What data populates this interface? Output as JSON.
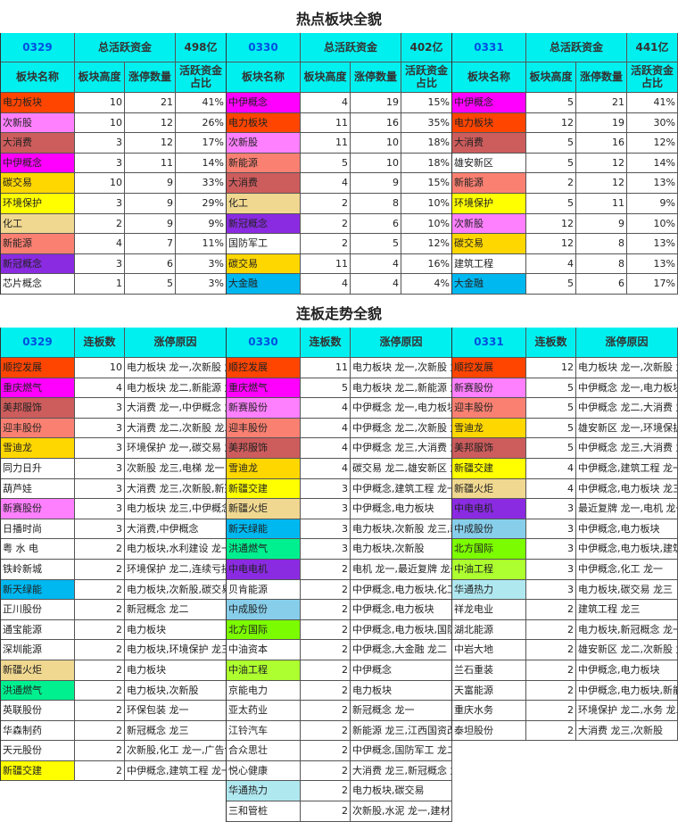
{
  "titles": {
    "hot": "热点板块全貌",
    "chain": "连板走势全貌"
  },
  "colors": {
    "电力": "#ff4500",
    "次新": "#ff80ff",
    "消费": "#cd5c5c",
    "中伊": "#ff00ff",
    "碳": "#ffd700",
    "环保": "#ffff00",
    "化工": "#f0d890",
    "新能源": "#fa8072",
    "新冠": "#8a2be2",
    "金融": "#00b8f0",
    "洪通": "#00f090",
    "中成": "#87ceeb",
    "北方": "#7cfc00",
    "中油": "#adff2f",
    "华通": "#b0e8f0",
    "white": "#ffffff",
    "header": "#00f0f0",
    "date": "#0050e0"
  },
  "hot_headers": {
    "total_label": "总活跃资金",
    "name": "板块名称",
    "height": "板块高度",
    "count": "涨停数量",
    "ratio": "活跃资金占比"
  },
  "hot": [
    {
      "date": "0329",
      "total": "498亿",
      "rows": [
        [
          "电力板块",
          "10",
          "21",
          "41%",
          "电力"
        ],
        [
          "次新股",
          "10",
          "12",
          "26%",
          "次新"
        ],
        [
          "大消费",
          "3",
          "12",
          "17%",
          "消费"
        ],
        [
          "中伊概念",
          "3",
          "11",
          "14%",
          "中伊"
        ],
        [
          "碳交易",
          "10",
          "9",
          "33%",
          "碳"
        ],
        [
          "环境保护",
          "3",
          "9",
          "29%",
          "环保"
        ],
        [
          "化工",
          "2",
          "9",
          "9%",
          "化工"
        ],
        [
          "新能源",
          "4",
          "7",
          "11%",
          "新能源"
        ],
        [
          "新冠概念",
          "3",
          "6",
          "3%",
          "新冠"
        ],
        [
          "芯片概念",
          "1",
          "5",
          "3%",
          "white"
        ]
      ]
    },
    {
      "date": "0330",
      "total": "402亿",
      "rows": [
        [
          "中伊概念",
          "4",
          "19",
          "15%",
          "中伊"
        ],
        [
          "电力板块",
          "11",
          "16",
          "35%",
          "电力"
        ],
        [
          "次新股",
          "11",
          "10",
          "18%",
          "次新"
        ],
        [
          "新能源",
          "5",
          "10",
          "18%",
          "新能源"
        ],
        [
          "大消费",
          "4",
          "9",
          "15%",
          "消费"
        ],
        [
          "化工",
          "2",
          "8",
          "10%",
          "化工"
        ],
        [
          "新冠概念",
          "2",
          "6",
          "10%",
          "新冠"
        ],
        [
          "国防军工",
          "2",
          "5",
          "12%",
          "white"
        ],
        [
          "碳交易",
          "11",
          "4",
          "16%",
          "碳"
        ],
        [
          "大金融",
          "4",
          "4",
          "4%",
          "金融"
        ]
      ]
    },
    {
      "date": "0331",
      "total": "441亿",
      "rows": [
        [
          "中伊概念",
          "5",
          "21",
          "41%",
          "中伊"
        ],
        [
          "电力板块",
          "12",
          "19",
          "30%",
          "电力"
        ],
        [
          "大消费",
          "5",
          "16",
          "12%",
          "消费"
        ],
        [
          "雄安新区",
          "5",
          "12",
          "14%",
          "white"
        ],
        [
          "新能源",
          "2",
          "12",
          "13%",
          "新能源"
        ],
        [
          "环境保护",
          "5",
          "11",
          "9%",
          "环保"
        ],
        [
          "次新股",
          "12",
          "9",
          "10%",
          "次新"
        ],
        [
          "碳交易",
          "12",
          "8",
          "13%",
          "碳"
        ],
        [
          "建筑工程",
          "4",
          "8",
          "13%",
          "white"
        ],
        [
          "大金融",
          "5",
          "6",
          "17%",
          "金融"
        ]
      ]
    }
  ],
  "chain_headers": {
    "count": "连板数",
    "reason": "涨停原因"
  },
  "chain": [
    {
      "date": "0329",
      "rows": [
        [
          "顺控发展",
          "10",
          "电力板块 龙一,次新股 龙",
          "电力"
        ],
        [
          "重庆燃气",
          "4",
          "电力板块 龙二,新能源 龙",
          "中伊"
        ],
        [
          "美邦服饰",
          "3",
          "大消费 龙一,中伊概念 龙",
          "消费"
        ],
        [
          "迎丰股份",
          "3",
          "大消费 龙二,次新股 龙二",
          "新能源"
        ],
        [
          "雪迪龙",
          "3",
          "环境保护 龙一,碳交易 龙",
          "碳"
        ],
        [
          "同力日升",
          "3",
          "次新股 龙三,电梯 龙一",
          "white"
        ],
        [
          "葫芦娃",
          "3",
          "大消费 龙三,次新股,新冠",
          "white"
        ],
        [
          "新赛股份",
          "3",
          "电力板块 龙三,中伊概念",
          "次新"
        ],
        [
          "日播时尚",
          "3",
          "大消费,中伊概念",
          "white"
        ],
        [
          "粤 水 电",
          "2",
          "电力板块,水利建设 龙一",
          "white"
        ],
        [
          "铁岭新城",
          "2",
          "环境保护 龙二,连续亏损",
          "white"
        ],
        [
          "新天绿能",
          "2",
          "电力板块,次新股,碳交易",
          "金融"
        ],
        [
          "正川股份",
          "2",
          "新冠概念 龙二",
          "white"
        ],
        [
          "通宝能源",
          "2",
          "电力板块",
          "white"
        ],
        [
          "深圳能源",
          "2",
          "电力板块,环境保护 龙三",
          "white"
        ],
        [
          "新疆火炬",
          "2",
          "电力板块",
          "化工"
        ],
        [
          "洪通燃气",
          "2",
          "电力板块,次新股",
          "洪通"
        ],
        [
          "英联股份",
          "2",
          "环保包装 龙一",
          "white"
        ],
        [
          "华森制药",
          "2",
          "新冠概念 龙三",
          "white"
        ],
        [
          "天元股份",
          "2",
          "次新股,化工 龙一,广告包",
          "white"
        ],
        [
          "新疆交建",
          "2",
          "中伊概念,建筑工程 龙一",
          "环保"
        ]
      ]
    },
    {
      "date": "0330",
      "rows": [
        [
          "顺控发展",
          "11",
          "电力板块 龙一,次新股 龙",
          "电力"
        ],
        [
          "重庆燃气",
          "5",
          "电力板块 龙二,新能源 龙",
          "中伊"
        ],
        [
          "新赛股份",
          "4",
          "中伊概念 龙一,电力板块",
          "次新"
        ],
        [
          "迎丰股份",
          "4",
          "中伊概念 龙二,次新股 龙",
          "新能源"
        ],
        [
          "美邦服饰",
          "4",
          "中伊概念 龙三,大消费 龙",
          "消费"
        ],
        [
          "雪迪龙",
          "4",
          "碳交易 龙二,雄安新区 龙",
          "碳"
        ],
        [
          "新疆交建",
          "3",
          "中伊概念,建筑工程 龙一",
          "环保"
        ],
        [
          "新疆火炬",
          "3",
          "中伊概念,电力板块",
          "化工"
        ],
        [
          "新天绿能",
          "3",
          "电力板块,次新股 龙三,新",
          "金融"
        ],
        [
          "洪通燃气",
          "3",
          "电力板块,次新股",
          "洪通"
        ],
        [
          "中电电机",
          "2",
          "电机 龙一,最近复牌 龙一",
          "新冠"
        ],
        [
          "贝肯能源",
          "2",
          "中伊概念,电力板块,化工",
          "white"
        ],
        [
          "中成股份",
          "2",
          "中伊概念,电力板块",
          "中成"
        ],
        [
          "北方国际",
          "2",
          "中伊概念,电力板块,国防",
          "北方"
        ],
        [
          "中油资本",
          "2",
          "中伊概念,大金融 龙二",
          "white"
        ],
        [
          "中油工程",
          "2",
          "中伊概念",
          "中油"
        ],
        [
          "京能电力",
          "2",
          "电力板块",
          "white"
        ],
        [
          "亚太药业",
          "2",
          "新冠概念 龙一",
          "white"
        ],
        [
          "江铃汽车",
          "2",
          "新能源 龙三,江西国资改",
          "white"
        ],
        [
          "合众思壮",
          "2",
          "中伊概念,国防军工 龙二",
          "white"
        ],
        [
          "悦心健康",
          "2",
          "大消费 龙三,新冠概念 龙",
          "white"
        ],
        [
          "华通热力",
          "2",
          "电力板块,碳交易",
          "华通"
        ],
        [
          "三和管桩",
          "2",
          "次新股,水泥 龙一,建材 龙",
          "white"
        ]
      ]
    },
    {
      "date": "0331",
      "rows": [
        [
          "顺控发展",
          "12",
          "电力板块 龙一,次新股 龙",
          "电力"
        ],
        [
          "新赛股份",
          "5",
          "中伊概念 龙一,电力板块",
          "次新"
        ],
        [
          "迎丰股份",
          "5",
          "中伊概念 龙二,大消费 龙",
          "新能源"
        ],
        [
          "雪迪龙",
          "5",
          "雄安新区 龙一,环境保护",
          "碳"
        ],
        [
          "美邦服饰",
          "5",
          "中伊概念 龙三,大消费 龙",
          "消费"
        ],
        [
          "新疆交建",
          "4",
          "中伊概念,建筑工程 龙一",
          "环保"
        ],
        [
          "新疆火炬",
          "4",
          "中伊概念,电力板块 龙三",
          "化工"
        ],
        [
          "中电电机",
          "3",
          "最近复牌 龙一,电机 龙一",
          "新冠"
        ],
        [
          "中成股份",
          "3",
          "中伊概念,电力板块",
          "中成"
        ],
        [
          "北方国际",
          "3",
          "中伊概念,电力板块,建筑",
          "北方"
        ],
        [
          "中油工程",
          "3",
          "中伊概念,化工 龙一",
          "中油"
        ],
        [
          "华通热力",
          "3",
          "电力板块,碳交易 龙三",
          "华通"
        ],
        [
          "祥龙电业",
          "2",
          "建筑工程 龙三",
          "white"
        ],
        [
          "湖北能源",
          "2",
          "电力板块,新冠概念 龙一",
          "white"
        ],
        [
          "中岩大地",
          "2",
          "雄安新区 龙二,次新股 龙",
          "white"
        ],
        [
          "兰石重装",
          "2",
          "中伊概念,电力板块",
          "white"
        ],
        [
          "天富能源",
          "2",
          "中伊概念,电力板块,新能",
          "white"
        ],
        [
          "重庆水务",
          "2",
          "环境保护 龙二,水务 龙二",
          "white"
        ],
        [
          "泰坦股份",
          "2",
          "大消费 龙三,次新股",
          "white"
        ]
      ]
    }
  ]
}
